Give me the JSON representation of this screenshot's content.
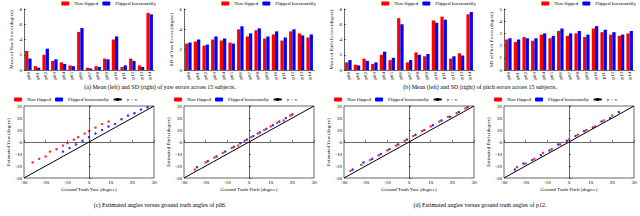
{
  "chart_data": [
    {
      "type": "bar",
      "ylabel": "Mean of Yaw Errors (degree)",
      "categories": [
        "p00",
        "p01",
        "p02",
        "p03",
        "p04",
        "p05",
        "p06",
        "p07",
        "p08",
        "p09",
        "p10",
        "p11",
        "p12",
        "p13",
        "p14"
      ],
      "series": [
        {
          "name": "Non flipped",
          "color": "#ff0000",
          "values": [
            2.5,
            0.5,
            2.0,
            1.2,
            1.0,
            0.6,
            5.0,
            0.3,
            0.5,
            1.5,
            4.0,
            0.4,
            1.5,
            0.6,
            7.5
          ]
        },
        {
          "name": "Flipped horizontally",
          "color": "#0000ff",
          "values": [
            1.5,
            0.3,
            2.8,
            1.4,
            0.8,
            0.5,
            5.5,
            0.2,
            0.4,
            1.4,
            4.4,
            0.6,
            1.2,
            0.4,
            7.3
          ]
        }
      ],
      "ylim": [
        0,
        8
      ],
      "yticks": [
        0,
        2,
        4,
        6,
        8
      ],
      "grid": false,
      "legend": "upper right"
    },
    {
      "type": "bar",
      "ylabel": "SD of Yaw Errors (degree)",
      "categories": [
        "p00",
        "p01",
        "p02",
        "p03",
        "p04",
        "p05",
        "p06",
        "p07",
        "p08",
        "p09",
        "p10",
        "p11",
        "p12",
        "p13",
        "p14"
      ],
      "series": [
        {
          "name": "Non flipped",
          "color": "#ff0000",
          "values": [
            2.6,
            2.8,
            2.4,
            3.0,
            2.9,
            2.7,
            4.0,
            3.3,
            3.9,
            3.1,
            3.5,
            2.9,
            3.8,
            3.6,
            3.2
          ]
        },
        {
          "name": "Flipped horizontally",
          "color": "#0000ff",
          "values": [
            2.7,
            3.0,
            2.5,
            3.3,
            3.1,
            2.6,
            4.3,
            3.6,
            4.1,
            3.3,
            3.8,
            3.2,
            4.0,
            3.4,
            3.5
          ]
        }
      ],
      "ylim": [
        0,
        6
      ],
      "yticks": [
        0,
        2,
        4,
        6
      ],
      "grid": false,
      "legend": "upper right"
    },
    {
      "type": "bar",
      "ylabel": "Mean of Pitch Errors (degree)",
      "categories": [
        "p00",
        "p01",
        "p02",
        "p03",
        "p04",
        "p05",
        "p06",
        "p07",
        "p08",
        "p09",
        "p10",
        "p11",
        "p12",
        "p13",
        "p14"
      ],
      "series": [
        {
          "name": "Non flipped",
          "color": "#ff0000",
          "values": [
            1.0,
            0.7,
            1.5,
            0.8,
            2.0,
            1.3,
            6.8,
            1.0,
            2.3,
            1.8,
            6.5,
            7.0,
            1.5,
            2.2,
            7.3
          ]
        },
        {
          "name": "Flipped horizontally",
          "color": "#0000ff",
          "values": [
            1.3,
            0.6,
            1.2,
            1.0,
            2.4,
            1.6,
            6.0,
            1.3,
            2.0,
            2.1,
            6.2,
            6.6,
            1.8,
            1.9,
            7.6
          ]
        }
      ],
      "ylim": [
        0,
        8
      ],
      "yticks": [
        0,
        2,
        4,
        6,
        8
      ],
      "grid": false,
      "legend": "upper right"
    },
    {
      "type": "bar",
      "ylabel": "SD of Pitch Errors (degree)",
      "categories": [
        "p00",
        "p01",
        "p02",
        "p03",
        "p04",
        "p05",
        "p06",
        "p07",
        "p08",
        "p09",
        "p10",
        "p11",
        "p12",
        "p13",
        "p14"
      ],
      "series": [
        {
          "name": "Non flipped",
          "color": "#ff0000",
          "values": [
            2.5,
            2.3,
            2.7,
            2.4,
            2.9,
            2.6,
            3.2,
            2.8,
            3.0,
            2.7,
            3.4,
            3.1,
            2.9,
            2.8,
            3.0
          ]
        },
        {
          "name": "Flipped horizontally",
          "color": "#0000ff",
          "values": [
            2.6,
            2.5,
            2.6,
            2.6,
            3.0,
            2.8,
            3.4,
            3.0,
            3.2,
            2.9,
            3.6,
            3.3,
            3.1,
            2.9,
            3.2
          ]
        }
      ],
      "ylim": [
        0,
        5
      ],
      "yticks": [
        0,
        1,
        2,
        3,
        4,
        5
      ],
      "grid": false,
      "legend": "upper right"
    },
    {
      "type": "scatter",
      "xlabel": "Ground Truth Yaw (degree)",
      "ylabel": "Estimated Yaw (degree)",
      "series": [
        {
          "name": "Non flipped",
          "color": "#ff0000",
          "x": [
            -26,
            -23,
            -20,
            -18,
            -15,
            -12,
            -10,
            -7,
            -5,
            -2,
            0,
            3,
            6,
            9
          ],
          "y": [
            -17,
            -14,
            -12,
            -8,
            -6,
            -3,
            -1,
            2,
            4,
            7,
            9,
            12,
            15,
            17
          ]
        },
        {
          "name": "Flipped horizontally",
          "color": "#0000ff",
          "x": [
            -12,
            -9,
            -6,
            -3,
            0,
            3,
            6,
            9,
            12,
            15,
            18,
            21,
            24,
            27
          ],
          "y": [
            -8,
            -5,
            -2,
            1,
            4,
            7,
            10,
            13,
            15,
            19,
            22,
            24,
            27,
            29
          ]
        },
        {
          "name": "y = x",
          "type": "line",
          "color": "#000000",
          "x": [
            -30,
            30
          ],
          "y": [
            -30,
            30
          ]
        }
      ],
      "xlim": [
        -30,
        30
      ],
      "xticks": [
        -30,
        -20,
        -10,
        0,
        10,
        20,
        30
      ],
      "ylim": [
        -30,
        30
      ],
      "yticks": [
        -30,
        -20,
        -10,
        0,
        10,
        20,
        30
      ],
      "grid": false,
      "legend": "upper left"
    },
    {
      "type": "scatter",
      "xlabel": "Ground Truth Pitch (degree)",
      "ylabel": "Estimated Pitch (degree)",
      "series": [
        {
          "name": "Non flipped",
          "color": "#ff0000",
          "x": [
            -25,
            -20,
            -16,
            -12,
            -8,
            -5,
            -2,
            1,
            4,
            7,
            10,
            13,
            16,
            19
          ],
          "y": [
            -23,
            -17,
            -13,
            -9,
            -5,
            -3,
            1,
            4,
            7,
            10,
            13,
            16,
            18,
            22
          ]
        },
        {
          "name": "Flipped horizontally",
          "color": "#0000ff",
          "x": [
            -24,
            -19,
            -15,
            -11,
            -7,
            -4,
            -1,
            2,
            5,
            8,
            11,
            14,
            17,
            20
          ],
          "y": [
            -21,
            -16,
            -12,
            -8,
            -4,
            -1,
            2,
            5,
            8,
            11,
            14,
            17,
            20,
            23
          ]
        },
        {
          "name": "y = x",
          "type": "line",
          "color": "#000000",
          "x": [
            -30,
            30
          ],
          "y": [
            -30,
            30
          ]
        }
      ],
      "xlim": [
        -30,
        30
      ],
      "xticks": [
        -30,
        -20,
        -10,
        0,
        10,
        20,
        30
      ],
      "ylim": [
        -30,
        30
      ],
      "yticks": [
        -30,
        -20,
        -10,
        0,
        10,
        20,
        30
      ],
      "grid": false,
      "legend": "upper left"
    },
    {
      "type": "scatter",
      "xlabel": "Ground Truth Yaw (degree)",
      "ylabel": "Estimated Yaw (degree)",
      "series": [
        {
          "name": "Non flipped",
          "color": "#ff0000",
          "x": [
            -27,
            -22,
            -18,
            -14,
            -10,
            -6,
            -2,
            2,
            6,
            10,
            14,
            18,
            22,
            26
          ],
          "y": [
            -24,
            -19,
            -15,
            -11,
            -7,
            -3,
            1,
            5,
            9,
            13,
            17,
            21,
            24,
            28
          ]
        },
        {
          "name": "Flipped horizontally",
          "color": "#0000ff",
          "x": [
            -26,
            -21,
            -17,
            -13,
            -9,
            -5,
            -1,
            3,
            7,
            11,
            15,
            19,
            23,
            27
          ],
          "y": [
            -23,
            -17,
            -14,
            -10,
            -6,
            -2,
            2,
            6,
            10,
            14,
            18,
            21,
            25,
            29
          ]
        },
        {
          "name": "y = x",
          "type": "line",
          "color": "#000000",
          "x": [
            -30,
            30
          ],
          "y": [
            -30,
            30
          ]
        }
      ],
      "xlim": [
        -30,
        30
      ],
      "xticks": [
        -30,
        -20,
        -10,
        0,
        10,
        20,
        30
      ],
      "ylim": [
        -30,
        30
      ],
      "yticks": [
        -30,
        -20,
        -10,
        0,
        10,
        20,
        30
      ],
      "grid": false,
      "legend": "upper left"
    },
    {
      "type": "scatter",
      "xlabel": "Ground Truth Pitch (degree)",
      "ylabel": "Estimated Pitch (degree)",
      "series": [
        {
          "name": "Non flipped",
          "color": "#ff0000",
          "x": [
            -24,
            -20,
            -16,
            -12,
            -8,
            -4,
            0,
            4,
            8,
            12,
            16,
            20
          ],
          "y": [
            -21,
            -18,
            -14,
            -9,
            -6,
            -2,
            2,
            6,
            10,
            13,
            18,
            22
          ]
        },
        {
          "name": "Flipped horizontally",
          "color": "#0000ff",
          "x": [
            -25,
            -21,
            -17,
            -13,
            -9,
            -5,
            -1,
            3,
            7,
            11,
            15,
            19,
            23
          ],
          "y": [
            -23,
            -18,
            -15,
            -11,
            -7,
            -2,
            1,
            5,
            9,
            12,
            17,
            20,
            25
          ]
        },
        {
          "name": "y = x",
          "type": "line",
          "color": "#000000",
          "x": [
            -30,
            30
          ],
          "y": [
            -30,
            30
          ]
        }
      ],
      "xlim": [
        -30,
        30
      ],
      "xticks": [
        -30,
        -20,
        -10,
        0,
        10,
        20,
        30
      ],
      "ylim": [
        -30,
        30
      ],
      "yticks": [
        -30,
        -20,
        -10,
        0,
        10,
        20,
        30
      ],
      "grid": false,
      "legend": "upper left"
    }
  ],
  "captions": [
    "(a) Mean (left) and SD (right) of yaw errors across 15 subjects.",
    "(b) Mean (left) and SD (right) of pitch errors across 15 subjects.",
    "(c) Estimated angles versus ground truth angles of p06.",
    "(d) Estimated angles versus ground truth angles of p12."
  ]
}
